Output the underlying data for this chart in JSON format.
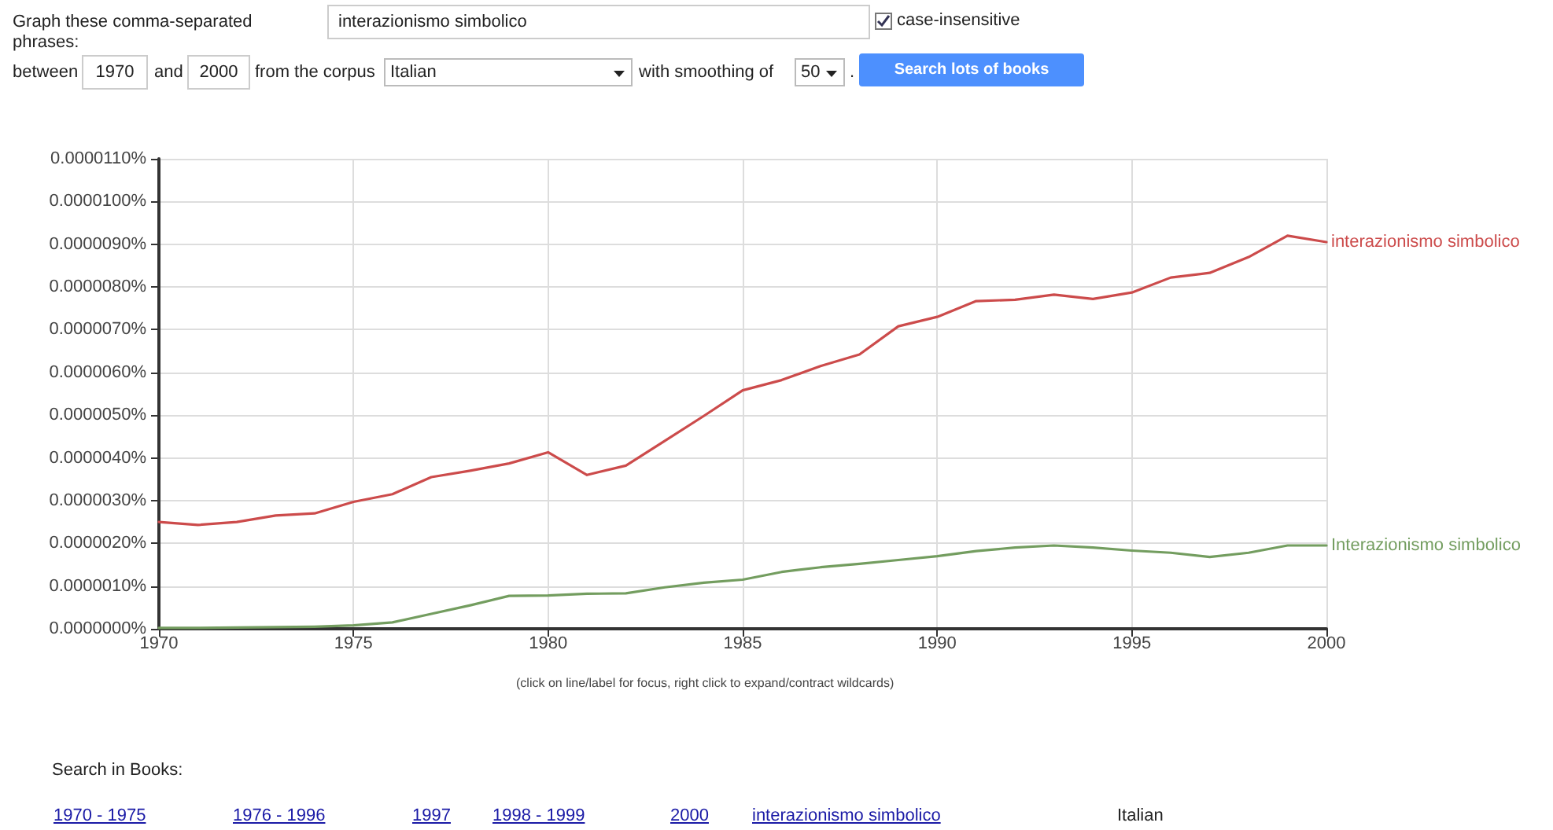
{
  "chart_data": {
    "type": "line",
    "x": [
      1970,
      1971,
      1972,
      1973,
      1974,
      1975,
      1976,
      1977,
      1978,
      1979,
      1980,
      1981,
      1982,
      1983,
      1984,
      1985,
      1986,
      1987,
      1988,
      1989,
      1990,
      1991,
      1992,
      1993,
      1994,
      1995,
      1996,
      1997,
      1998,
      1999,
      2000
    ],
    "series": [
      {
        "name": "interazionismo simbolico",
        "color": "#cc4b4b",
        "values": [
          2.5e-06,
          2.43e-06,
          2.5e-06,
          2.65e-06,
          2.7e-06,
          2.97e-06,
          3.15e-06,
          3.55e-06,
          3.7e-06,
          3.87e-06,
          4.13e-06,
          3.6e-06,
          3.82e-06,
          4.4e-06,
          4.98e-06,
          5.58e-06,
          5.82e-06,
          6.15e-06,
          6.42e-06,
          7.08e-06,
          7.3e-06,
          7.67e-06,
          7.7e-06,
          7.82e-06,
          7.72e-06,
          7.87e-06,
          8.22e-06,
          8.33e-06,
          8.7e-06,
          9.2e-06,
          9.05e-06
        ]
      },
      {
        "name": "Interazionismo simbolico",
        "color": "#739d5f",
        "values": [
          2e-08,
          2e-08,
          3e-08,
          4e-08,
          5e-08,
          8e-08,
          1.5e-07,
          3.5e-07,
          5.5e-07,
          7.7e-07,
          7.8e-07,
          8.2e-07,
          8.3e-07,
          9.7e-07,
          1.08e-06,
          1.15e-06,
          1.33e-06,
          1.44e-06,
          1.52e-06,
          1.61e-06,
          1.7e-06,
          1.82e-06,
          1.9e-06,
          1.95e-06,
          1.9e-06,
          1.83e-06,
          1.78e-06,
          1.68e-06,
          1.78e-06,
          1.95e-06,
          1.95e-06
        ]
      }
    ],
    "xlim": [
      1970,
      2000
    ],
    "xticks": [
      1970,
      1975,
      1980,
      1985,
      1990,
      1995,
      2000
    ],
    "ylim": [
      0,
      1.1e-05
    ],
    "yticks": [
      {
        "value": 0,
        "label": "0.0000000%"
      },
      {
        "value": 1e-06,
        "label": "0.0000010%"
      },
      {
        "value": 2e-06,
        "label": "0.0000020%"
      },
      {
        "value": 3e-06,
        "label": "0.0000030%"
      },
      {
        "value": 4e-06,
        "label": "0.0000040%"
      },
      {
        "value": 5e-06,
        "label": "0.0000050%"
      },
      {
        "value": 6e-06,
        "label": "0.0000060%"
      },
      {
        "value": 7e-06,
        "label": "0.0000070%"
      },
      {
        "value": 8e-06,
        "label": "0.0000080%"
      },
      {
        "value": 9e-06,
        "label": "0.0000090%"
      },
      {
        "value": 1e-05,
        "label": "0.0000100%"
      },
      {
        "value": 1.1e-05,
        "label": "0.0000110%"
      }
    ],
    "grid": true,
    "legend": false,
    "marker": "none",
    "line_style": "solid",
    "annotations": [
      "Graph these comma-separated phrases:",
      "interazionismo simbolico",
      "case-insensitive",
      "between",
      "1970",
      "and",
      "2000",
      "from the corpus",
      "Italian",
      "with smoothing of",
      "50",
      ".",
      "Search lots of books",
      "(click on line/label for focus, right click to expand/contract wildcards)",
      "Search in Books:",
      "1970 - 1975",
      "1976 - 1996",
      "1997",
      "1998 - 1999",
      "2000",
      "interazionismo simbolico",
      "Italian"
    ]
  }
}
